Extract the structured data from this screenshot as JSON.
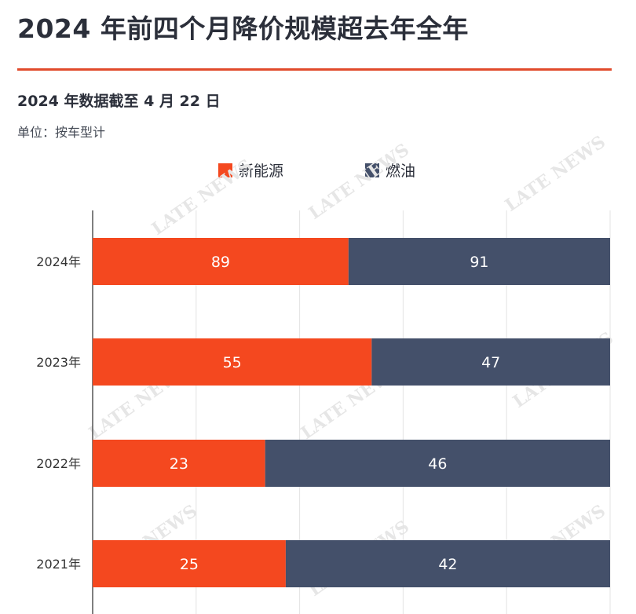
{
  "header": {
    "title": "2024 年前四个月降价规模超去年全年",
    "subtitle": "2024 年数据截至 4 月 22 日",
    "unit": "单位：按车型计"
  },
  "colors": {
    "accent_rule": "#e14a2b",
    "new_energy": "#f4481f",
    "fuel": "#44506a",
    "grid": "#e3e3e3"
  },
  "watermark_text": "LATE NEWS",
  "chart_data": {
    "type": "bar",
    "orientation": "horizontal",
    "stacked": true,
    "percent_stacked": true,
    "categories": [
      "2024年",
      "2023年",
      "2022年",
      "2021年"
    ],
    "series": [
      {
        "name": "新能源",
        "color": "#f4481f",
        "values": [
          89,
          55,
          23,
          25
        ]
      },
      {
        "name": "燃油",
        "color": "#44506a",
        "values": [
          91,
          47,
          46,
          42
        ]
      }
    ],
    "title": "2024 年前四个月降价规模超去年全年",
    "xlabel": "",
    "ylabel": "",
    "legend": "top-center",
    "grid": true
  }
}
